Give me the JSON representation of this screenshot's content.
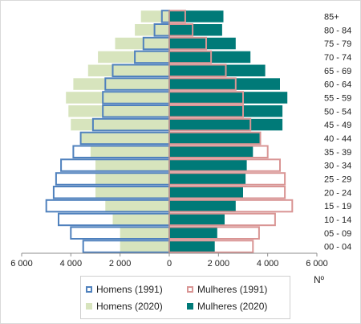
{
  "chart_data": {
    "type": "bar",
    "orientation": "horizontal",
    "subtype": "population-pyramid",
    "unit_label": "Nº",
    "x_range": [
      -6000,
      6000
    ],
    "x_ticks": [
      -6000,
      -4000,
      -2000,
      0,
      2000,
      4000,
      6000
    ],
    "x_tick_labels": [
      "6 000",
      "4 000",
      "2 000",
      "0",
      "2 000",
      "4 000",
      "6 000"
    ],
    "categories": [
      "00 - 04",
      "05 - 09",
      "10 - 14",
      "15 - 19",
      "20 - 24",
      "25 - 29",
      "30 - 34",
      "35 - 39",
      "40 - 44",
      "45 - 49",
      "50 - 54",
      "55 - 59",
      "60 - 64",
      "65 - 69",
      "70 - 74",
      "75 - 79",
      "80 - 84",
      "85+"
    ],
    "series": [
      {
        "name": "Homens (2020)",
        "side": "left",
        "style": "filled",
        "color": "#d7e4bd",
        "values": [
          2000,
          2000,
          2300,
          2600,
          3000,
          3000,
          3000,
          3200,
          3600,
          4000,
          4100,
          4200,
          3900,
          3300,
          2900,
          2200,
          1400,
          1150
        ]
      },
      {
        "name": "Mulheres (2020)",
        "side": "right",
        "style": "filled",
        "color": "#007a78",
        "values": [
          1850,
          1950,
          2250,
          2700,
          3000,
          3100,
          3150,
          3400,
          3700,
          4600,
          4600,
          4800,
          4500,
          3900,
          3300,
          2700,
          2150,
          2200
        ]
      },
      {
        "name": "Homens (1991)",
        "side": "left",
        "style": "outline",
        "color": "#4f81bd",
        "values": [
          3500,
          4000,
          4500,
          5000,
          4700,
          4600,
          4400,
          3900,
          3600,
          3100,
          2700,
          2700,
          2600,
          2300,
          1400,
          1050,
          600,
          300
        ]
      },
      {
        "name": "Mulheres (1991)",
        "side": "right",
        "style": "outline",
        "color": "#d99594",
        "values": [
          3400,
          3650,
          4300,
          5000,
          4700,
          4700,
          4500,
          4000,
          3700,
          3300,
          3000,
          3000,
          2700,
          2300,
          1700,
          1500,
          950,
          650
        ]
      }
    ],
    "legend_position": "bottom",
    "grid": false
  }
}
